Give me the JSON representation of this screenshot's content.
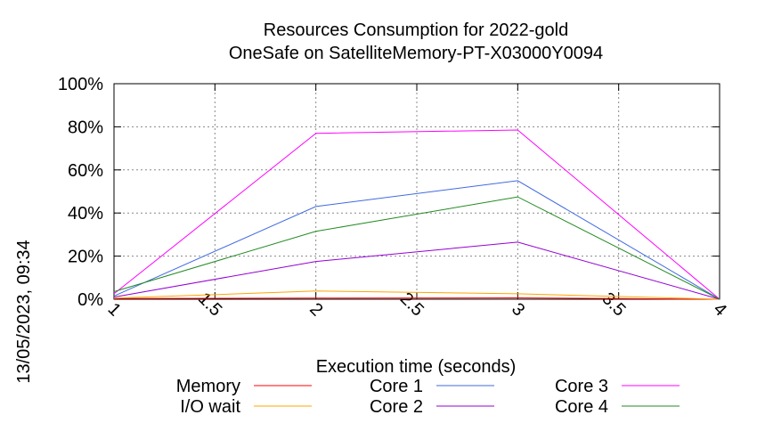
{
  "chart_data": {
    "type": "line",
    "title": "Resources Consumption for 2022-gold",
    "subtitle": "OneSafe on SatelliteMemory-PT-X03000Y0094",
    "xlabel": "Execution time (seconds)",
    "ylabel": "",
    "timestamp": "13/05/2023, 09:34",
    "xlim": [
      1,
      4
    ],
    "ylim": [
      0,
      100
    ],
    "x_ticks": [
      1,
      1.5,
      2,
      2.5,
      3,
      3.5,
      4
    ],
    "x_tick_labels": [
      "1",
      "1.5",
      "2",
      "2.5",
      "3",
      "3.5",
      "4"
    ],
    "y_ticks": [
      0,
      20,
      40,
      60,
      80,
      100
    ],
    "y_tick_labels": [
      "0%",
      "20%",
      "40%",
      "60%",
      "80%",
      "100%"
    ],
    "grid": true,
    "legend_position": "bottom",
    "x": [
      1,
      2,
      3,
      4
    ],
    "series": [
      {
        "name": "Memory",
        "color": "#ff0000",
        "values": [
          0.3,
          0.5,
          0.6,
          0
        ]
      },
      {
        "name": "I/O wait",
        "color": "#ffa500",
        "values": [
          0.5,
          3.8,
          2.5,
          0
        ]
      },
      {
        "name": "Core 1",
        "color": "#4169e1",
        "values": [
          1.5,
          43,
          55,
          0
        ]
      },
      {
        "name": "Core 2",
        "color": "#9400d3",
        "values": [
          1,
          17.5,
          26.5,
          0
        ]
      },
      {
        "name": "Core 3",
        "color": "#ff00ff",
        "values": [
          2.5,
          77,
          78.5,
          0
        ]
      },
      {
        "name": "Core 4",
        "color": "#228b22",
        "values": [
          3.5,
          31.5,
          47.5,
          0
        ]
      }
    ]
  }
}
